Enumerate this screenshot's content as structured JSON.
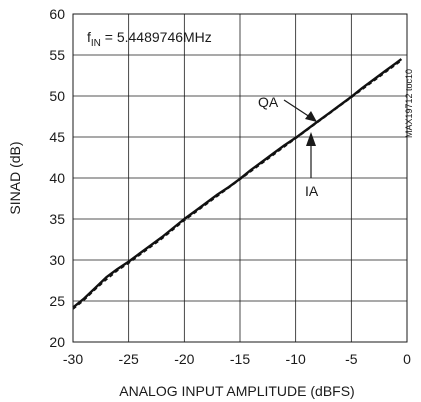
{
  "chart_data": {
    "type": "line",
    "title": "",
    "xlabel": "ANALOG INPUT AMPLITUDE (dBFS)",
    "ylabel": "SINAD (dB)",
    "xlim": [
      -30,
      0
    ],
    "ylim": [
      20,
      60
    ],
    "x_ticks": [
      -30,
      -25,
      -20,
      -15,
      -10,
      -5,
      0
    ],
    "y_ticks": [
      20,
      25,
      30,
      35,
      40,
      45,
      50,
      55,
      60
    ],
    "grid": true,
    "condition_label": {
      "prefix": "f",
      "subscript": "IN",
      "value": " = 5.4489746MHz"
    },
    "side_label": "MAX19712 toc10",
    "annotations": [
      {
        "text": "QA"
      },
      {
        "text": "IA"
      }
    ],
    "series": [
      {
        "name": "QA",
        "style": "solid",
        "x": [
          -30,
          -29,
          -28,
          -27,
          -26,
          -25,
          -24,
          -23,
          -22,
          -21,
          -20,
          -19,
          -18,
          -17,
          -16,
          -15,
          -14,
          -13,
          -12,
          -11,
          -10,
          -9,
          -8,
          -7,
          -6,
          -5,
          -4,
          -3,
          -2,
          -1,
          -0.5
        ],
        "y": [
          24.2,
          25.3,
          26.6,
          27.9,
          28.9,
          29.8,
          30.8,
          31.8,
          32.8,
          33.9,
          35.0,
          36.0,
          37.0,
          38.0,
          38.9,
          39.9,
          41.0,
          42.0,
          43.0,
          44.0,
          44.9,
          45.9,
          46.9,
          47.9,
          48.9,
          49.9,
          51.0,
          52.0,
          53.0,
          54.0,
          54.5
        ]
      },
      {
        "name": "IA",
        "style": "dashed",
        "x": [
          -30,
          -29,
          -28,
          -27,
          -26,
          -25,
          -24,
          -23,
          -22,
          -21,
          -20,
          -19,
          -18,
          -17,
          -16,
          -15,
          -14,
          -13,
          -12,
          -11,
          -10,
          -9,
          -8,
          -7,
          -6,
          -5,
          -4,
          -3,
          -2,
          -1,
          -0.5
        ],
        "y": [
          24.0,
          25.1,
          26.4,
          27.6,
          28.7,
          29.6,
          30.6,
          31.6,
          32.6,
          33.7,
          34.8,
          35.8,
          36.8,
          37.8,
          38.8,
          39.8,
          40.8,
          41.8,
          42.8,
          43.8,
          44.8,
          45.8,
          46.8,
          47.8,
          48.8,
          49.8,
          50.8,
          51.8,
          52.8,
          53.8,
          54.3
        ]
      }
    ]
  }
}
